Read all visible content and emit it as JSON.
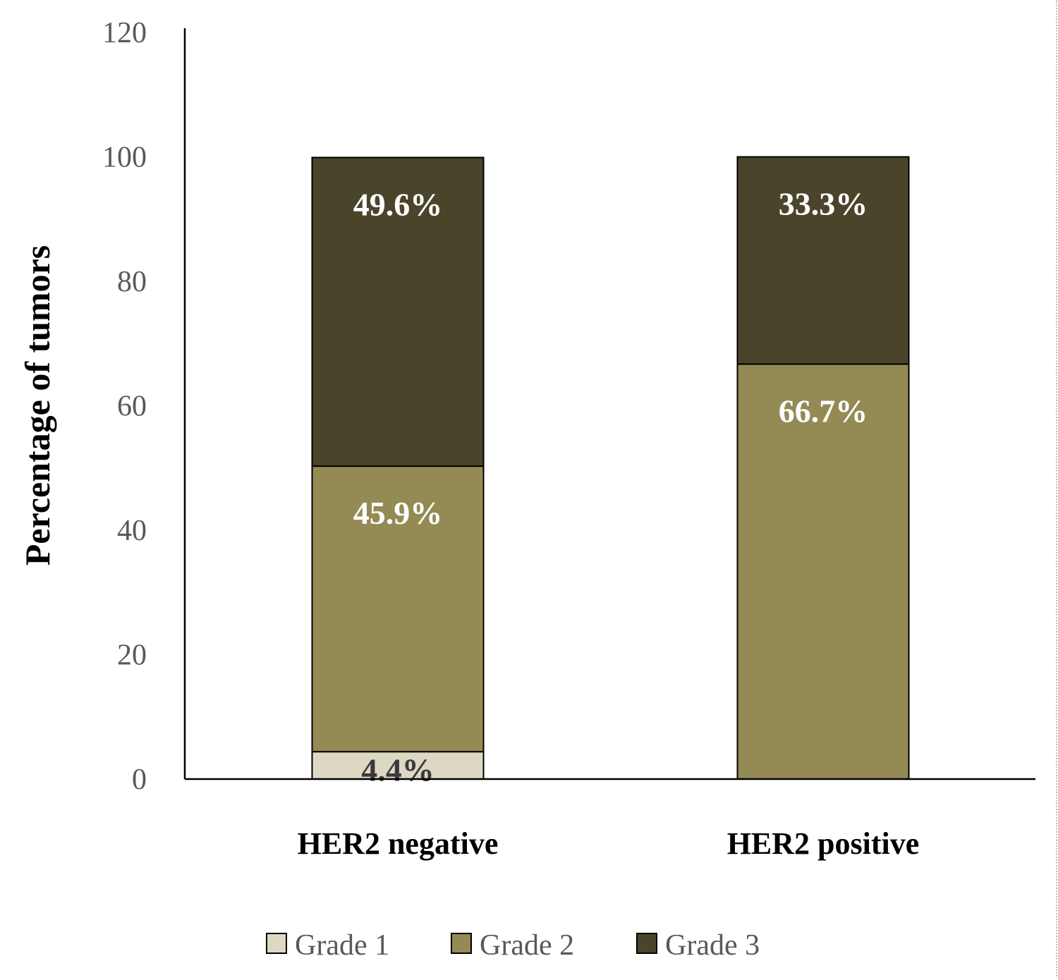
{
  "chart_data": {
    "type": "bar",
    "stacked": true,
    "categories": [
      "HER2 negative",
      "HER2 positive"
    ],
    "series": [
      {
        "name": "Grade 1",
        "values": [
          4.4,
          0
        ],
        "labels": [
          "4.4%",
          ""
        ],
        "color": "#ddd8c4",
        "label_color": "#3a3a3a"
      },
      {
        "name": "Grade 2",
        "values": [
          45.9,
          66.7
        ],
        "labels": [
          "45.9%",
          "66.7%"
        ],
        "color": "#948a54",
        "label_color": "#ffffff"
      },
      {
        "name": "Grade 3",
        "values": [
          49.6,
          33.3
        ],
        "labels": [
          "49.6%",
          "33.3%"
        ],
        "color": "#4a452a",
        "label_color": "#ffffff"
      }
    ],
    "ylabel": "Percentage of tumors",
    "xlabel": "",
    "title": "",
    "ylim": [
      0,
      120
    ],
    "yticks": [
      0,
      20,
      40,
      60,
      80,
      100,
      120
    ],
    "grid": false,
    "legend_position": "bottom"
  }
}
